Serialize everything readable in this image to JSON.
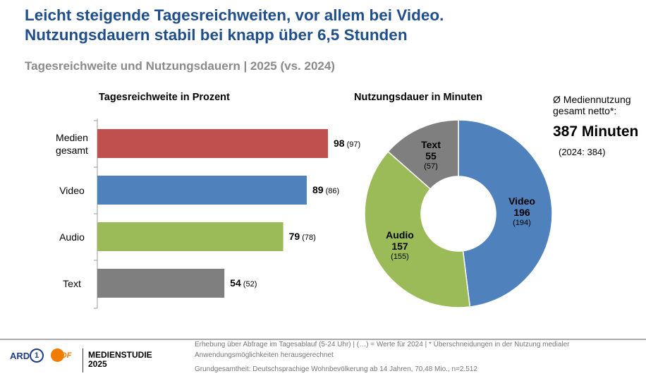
{
  "title_line1": "Leicht steigende Tagesreichweiten, vor allem bei Video.",
  "title_line2": "Nutzungsdauern stabil bei knapp über 6,5 Stunden",
  "subtitle": "Tagesreichweite und Nutzungsdauern | 2025 (vs. 2024)",
  "summary": {
    "label_line1": "Ø Mediennutzung",
    "label_line2": "gesamt netto*:",
    "value": "387 Minuten",
    "previous": "(2024: 384)"
  },
  "chart_data": [
    {
      "type": "bar",
      "orientation": "horizontal",
      "title": "Tagesreichweite in Prozent",
      "categories": [
        "Medien gesamt",
        "Video",
        "Audio",
        "Text"
      ],
      "category_lines": [
        [
          "Medien",
          "gesamt"
        ],
        [
          "Video"
        ],
        [
          "Audio"
        ],
        [
          "Text"
        ]
      ],
      "values": [
        98,
        89,
        79,
        54
      ],
      "previous": [
        97,
        86,
        78,
        52
      ],
      "colors": [
        "#c0504d",
        "#4f81bd",
        "#9bbb59",
        "#7f7f7f"
      ],
      "xlim": [
        0,
        100
      ]
    },
    {
      "type": "pie",
      "donut": true,
      "title": "Nutzungsdauer in Minuten",
      "categories": [
        "Video",
        "Audio",
        "Text"
      ],
      "values": [
        196,
        157,
        55
      ],
      "previous": [
        194,
        155,
        57
      ],
      "colors": [
        "#4f81bd",
        "#9bbb59",
        "#7f7f7f"
      ]
    }
  ],
  "footer": {
    "logo_ard": "ARD",
    "logo_zdf": "ZDF",
    "study_line1": "MEDIENSTUDIE",
    "study_line2": "2025",
    "note1": "Erhebung über Abfrage im Tagesablauf (5-24 Uhr) | (…) = Werte für 2024 | * Überschneidungen in der Nutzung medialer",
    "note2": "Anwendungsmöglichkeiten herausgerechnet",
    "note3": "Grundgesamtheit: Deutschsprachige Wohnbevölkerung ab 14 Jahren, 70,48 Mio., n=2.512"
  }
}
